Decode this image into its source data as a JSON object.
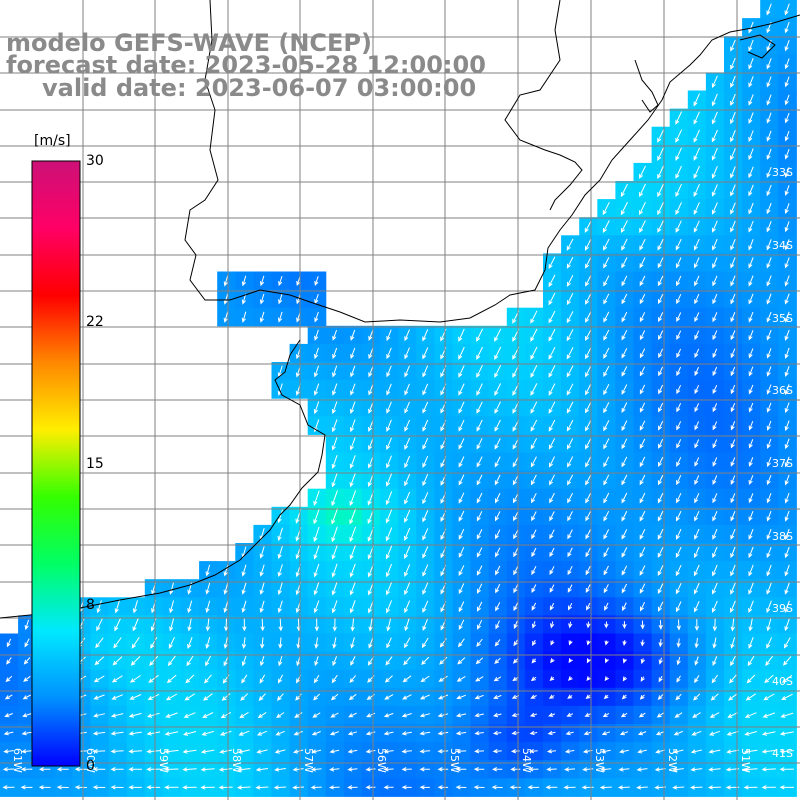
{
  "title": {
    "model": "modelo GEFS-WAVE (NCEP)",
    "forecast": "forecast date: 2023-05-28 12:00:00",
    "valid": "valid date: 2023-06-07 03:00:00"
  },
  "colorbar": {
    "unit": "[m/s]",
    "min": 0,
    "max": 30,
    "ticks": [
      {
        "value": 30,
        "label": "30"
      },
      {
        "value": 22,
        "label": "22"
      },
      {
        "value": 15,
        "label": "15"
      },
      {
        "value": 8,
        "label": "8"
      },
      {
        "value": 0,
        "label": "0"
      }
    ],
    "colors": [
      "#0000ff",
      "#0090ff",
      "#00e8ff",
      "#00ff66",
      "#33ff00",
      "#ffee00",
      "#ff8800",
      "#ff0000",
      "#ff0066",
      "#cc1177"
    ]
  },
  "grid": {
    "lon_labels": [
      "61W",
      "60W",
      "59W",
      "58W",
      "57W",
      "56W",
      "55W",
      "54W",
      "53W",
      "52W",
      "51W"
    ],
    "lat_labels": [
      "33S",
      "34S",
      "35S",
      "36S",
      "37S",
      "38S",
      "39S",
      "40S",
      "41S"
    ]
  },
  "colors": {
    "land": "#ffffff",
    "grid_line": "#808080",
    "coast": "#000000",
    "arrow": "#ffffff",
    "title": "#8a8a8a"
  }
}
